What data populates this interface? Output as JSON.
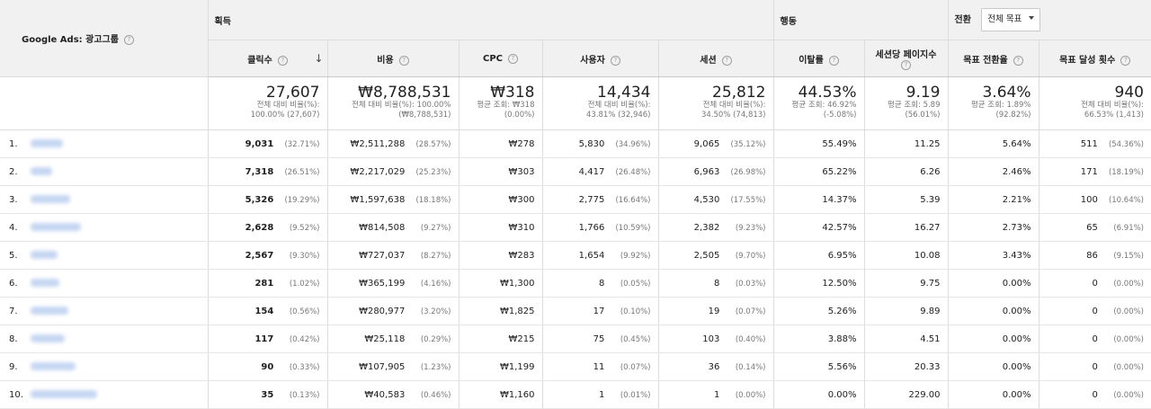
{
  "dimension_label": "Google Ads: 광고그룹",
  "groups": {
    "acquisition": "획득",
    "behavior": "행동",
    "conversion": "전환"
  },
  "goal_select": "전체 목표",
  "columns": {
    "clicks": "클릭수",
    "cost": "비용",
    "cpc": "CPC",
    "users": "사용자",
    "sessions": "세션",
    "bounce": "이탈률",
    "pps": "세션당 페이지수",
    "conv_rate": "목표 전환율",
    "goal_completions": "목표 달성 횟수"
  },
  "totals": {
    "clicks": {
      "value": "27,607",
      "l1": "전체 대비 비율(%):",
      "l2": "100.00% (27,607)"
    },
    "cost": {
      "value": "₩8,788,531",
      "l1": "전체 대비 비율(%): 100.00%",
      "l2": "(₩8,788,531)"
    },
    "cpc": {
      "value": "₩318",
      "l1": "평균 조회: ₩318",
      "l2": "(0.00%)"
    },
    "users": {
      "value": "14,434",
      "l1": "전체 대비 비율(%):",
      "l2": "43.81% (32,946)"
    },
    "sessions": {
      "value": "25,812",
      "l1": "전체 대비 비율(%):",
      "l2": "34.50% (74,813)"
    },
    "bounce": {
      "value": "44.53%",
      "l1": "평균 조회: 46.92%",
      "l2": "(-5.08%)"
    },
    "pps": {
      "value": "9.19",
      "l1": "평균 조회: 5.89",
      "l2": "(56.01%)"
    },
    "conv_rate": {
      "value": "3.64%",
      "l1": "평균 조회: 1.89%",
      "l2": "(92.82%)"
    },
    "goal_completions": {
      "value": "940",
      "l1": "전체 대비 비율(%):",
      "l2": "66.53% (1,413)"
    }
  },
  "rows": [
    {
      "num": "1.",
      "clicks": "9,031",
      "clicks_pct": "(32.71%)",
      "cost": "₩2,511,288",
      "cost_pct": "(28.57%)",
      "cpc": "₩278",
      "users": "5,830",
      "users_pct": "(34.96%)",
      "sessions": "9,065",
      "sessions_pct": "(35.12%)",
      "bounce": "55.49%",
      "pps": "11.25",
      "conv_rate": "5.64%",
      "goal": "511",
      "goal_pct": "(54.36%)"
    },
    {
      "num": "2.",
      "clicks": "7,318",
      "clicks_pct": "(26.51%)",
      "cost": "₩2,217,029",
      "cost_pct": "(25.23%)",
      "cpc": "₩303",
      "users": "4,417",
      "users_pct": "(26.48%)",
      "sessions": "6,963",
      "sessions_pct": "(26.98%)",
      "bounce": "65.22%",
      "pps": "6.26",
      "conv_rate": "2.46%",
      "goal": "171",
      "goal_pct": "(18.19%)"
    },
    {
      "num": "3.",
      "clicks": "5,326",
      "clicks_pct": "(19.29%)",
      "cost": "₩1,597,638",
      "cost_pct": "(18.18%)",
      "cpc": "₩300",
      "users": "2,775",
      "users_pct": "(16.64%)",
      "sessions": "4,530",
      "sessions_pct": "(17.55%)",
      "bounce": "14.37%",
      "pps": "5.39",
      "conv_rate": "2.21%",
      "goal": "100",
      "goal_pct": "(10.64%)"
    },
    {
      "num": "4.",
      "clicks": "2,628",
      "clicks_pct": "(9.52%)",
      "cost": "₩814,508",
      "cost_pct": "(9.27%)",
      "cpc": "₩310",
      "users": "1,766",
      "users_pct": "(10.59%)",
      "sessions": "2,382",
      "sessions_pct": "(9.23%)",
      "bounce": "42.57%",
      "pps": "16.27",
      "conv_rate": "2.73%",
      "goal": "65",
      "goal_pct": "(6.91%)"
    },
    {
      "num": "5.",
      "clicks": "2,567",
      "clicks_pct": "(9.30%)",
      "cost": "₩727,037",
      "cost_pct": "(8.27%)",
      "cpc": "₩283",
      "users": "1,654",
      "users_pct": "(9.92%)",
      "sessions": "2,505",
      "sessions_pct": "(9.70%)",
      "bounce": "6.95%",
      "pps": "10.08",
      "conv_rate": "3.43%",
      "goal": "86",
      "goal_pct": "(9.15%)"
    },
    {
      "num": "6.",
      "clicks": "281",
      "clicks_pct": "(1.02%)",
      "cost": "₩365,199",
      "cost_pct": "(4.16%)",
      "cpc": "₩1,300",
      "users": "8",
      "users_pct": "(0.05%)",
      "sessions": "8",
      "sessions_pct": "(0.03%)",
      "bounce": "12.50%",
      "pps": "9.75",
      "conv_rate": "0.00%",
      "goal": "0",
      "goal_pct": "(0.00%)"
    },
    {
      "num": "7.",
      "clicks": "154",
      "clicks_pct": "(0.56%)",
      "cost": "₩280,977",
      "cost_pct": "(3.20%)",
      "cpc": "₩1,825",
      "users": "17",
      "users_pct": "(0.10%)",
      "sessions": "19",
      "sessions_pct": "(0.07%)",
      "bounce": "5.26%",
      "pps": "9.89",
      "conv_rate": "0.00%",
      "goal": "0",
      "goal_pct": "(0.00%)"
    },
    {
      "num": "8.",
      "clicks": "117",
      "clicks_pct": "(0.42%)",
      "cost": "₩25,118",
      "cost_pct": "(0.29%)",
      "cpc": "₩215",
      "users": "75",
      "users_pct": "(0.45%)",
      "sessions": "103",
      "sessions_pct": "(0.40%)",
      "bounce": "3.88%",
      "pps": "4.51",
      "conv_rate": "0.00%",
      "goal": "0",
      "goal_pct": "(0.00%)"
    },
    {
      "num": "9.",
      "clicks": "90",
      "clicks_pct": "(0.33%)",
      "cost": "₩107,905",
      "cost_pct": "(1.23%)",
      "cpc": "₩1,199",
      "users": "11",
      "users_pct": "(0.07%)",
      "sessions": "36",
      "sessions_pct": "(0.14%)",
      "bounce": "5.56%",
      "pps": "20.33",
      "conv_rate": "0.00%",
      "goal": "0",
      "goal_pct": "(0.00%)"
    },
    {
      "num": "10.",
      "clicks": "35",
      "clicks_pct": "(0.13%)",
      "cost": "₩40,583",
      "cost_pct": "(0.46%)",
      "cpc": "₩1,160",
      "users": "1",
      "users_pct": "(0.01%)",
      "sessions": "1",
      "sessions_pct": "(0.00%)",
      "bounce": "0.00%",
      "pps": "229.00",
      "conv_rate": "0.00%",
      "goal": "0",
      "goal_pct": "(0.00%)"
    }
  ]
}
